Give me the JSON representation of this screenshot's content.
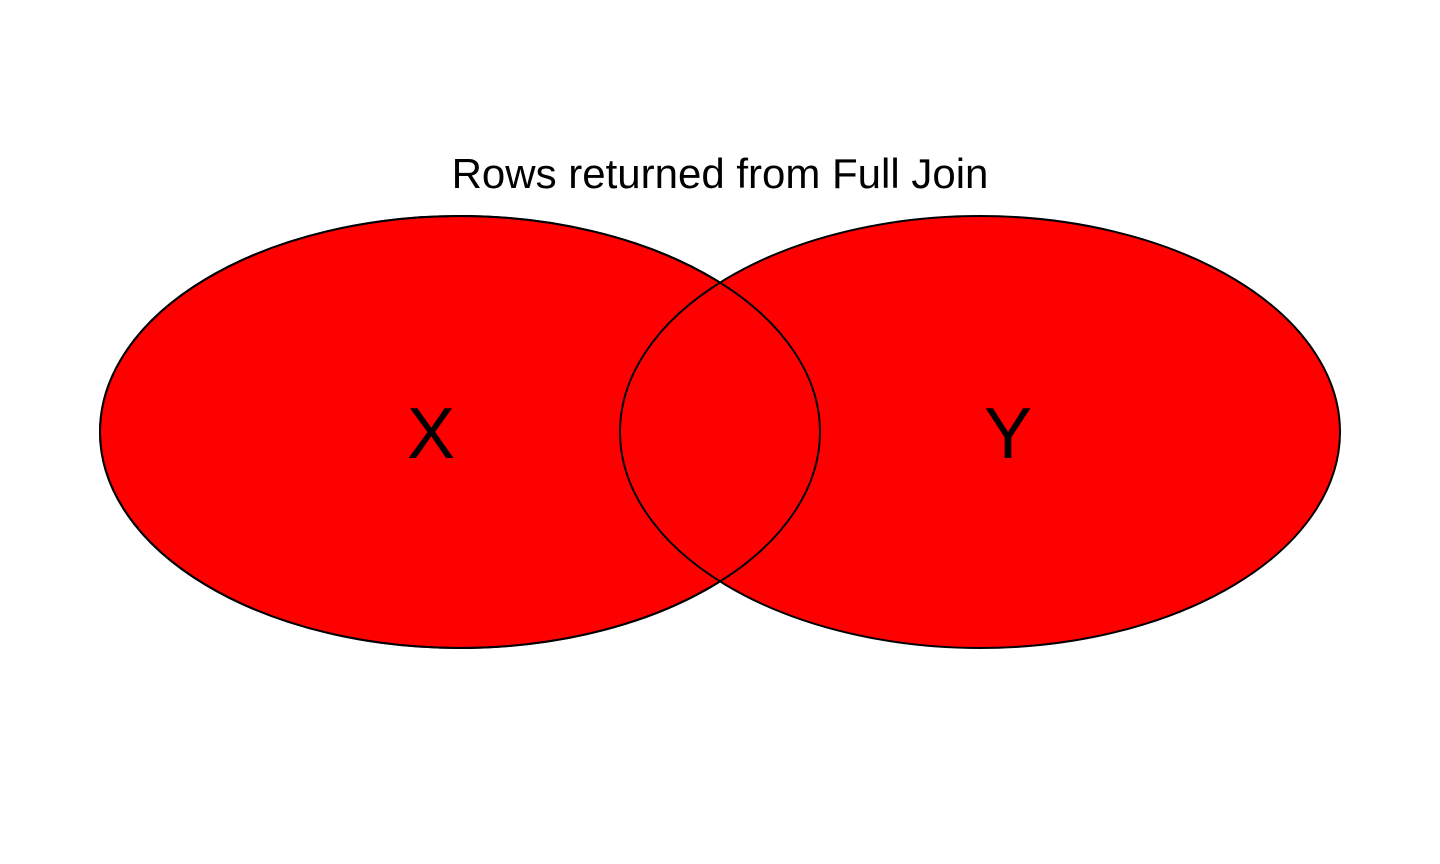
{
  "diagram": {
    "title": "Rows returned from Full Join",
    "sets": [
      {
        "label": "X",
        "fill": "#ff0000"
      },
      {
        "label": "Y",
        "fill": "#ff0000"
      }
    ],
    "outline_color": "#000000",
    "text_color": "#000000",
    "background": "#ffffff"
  }
}
